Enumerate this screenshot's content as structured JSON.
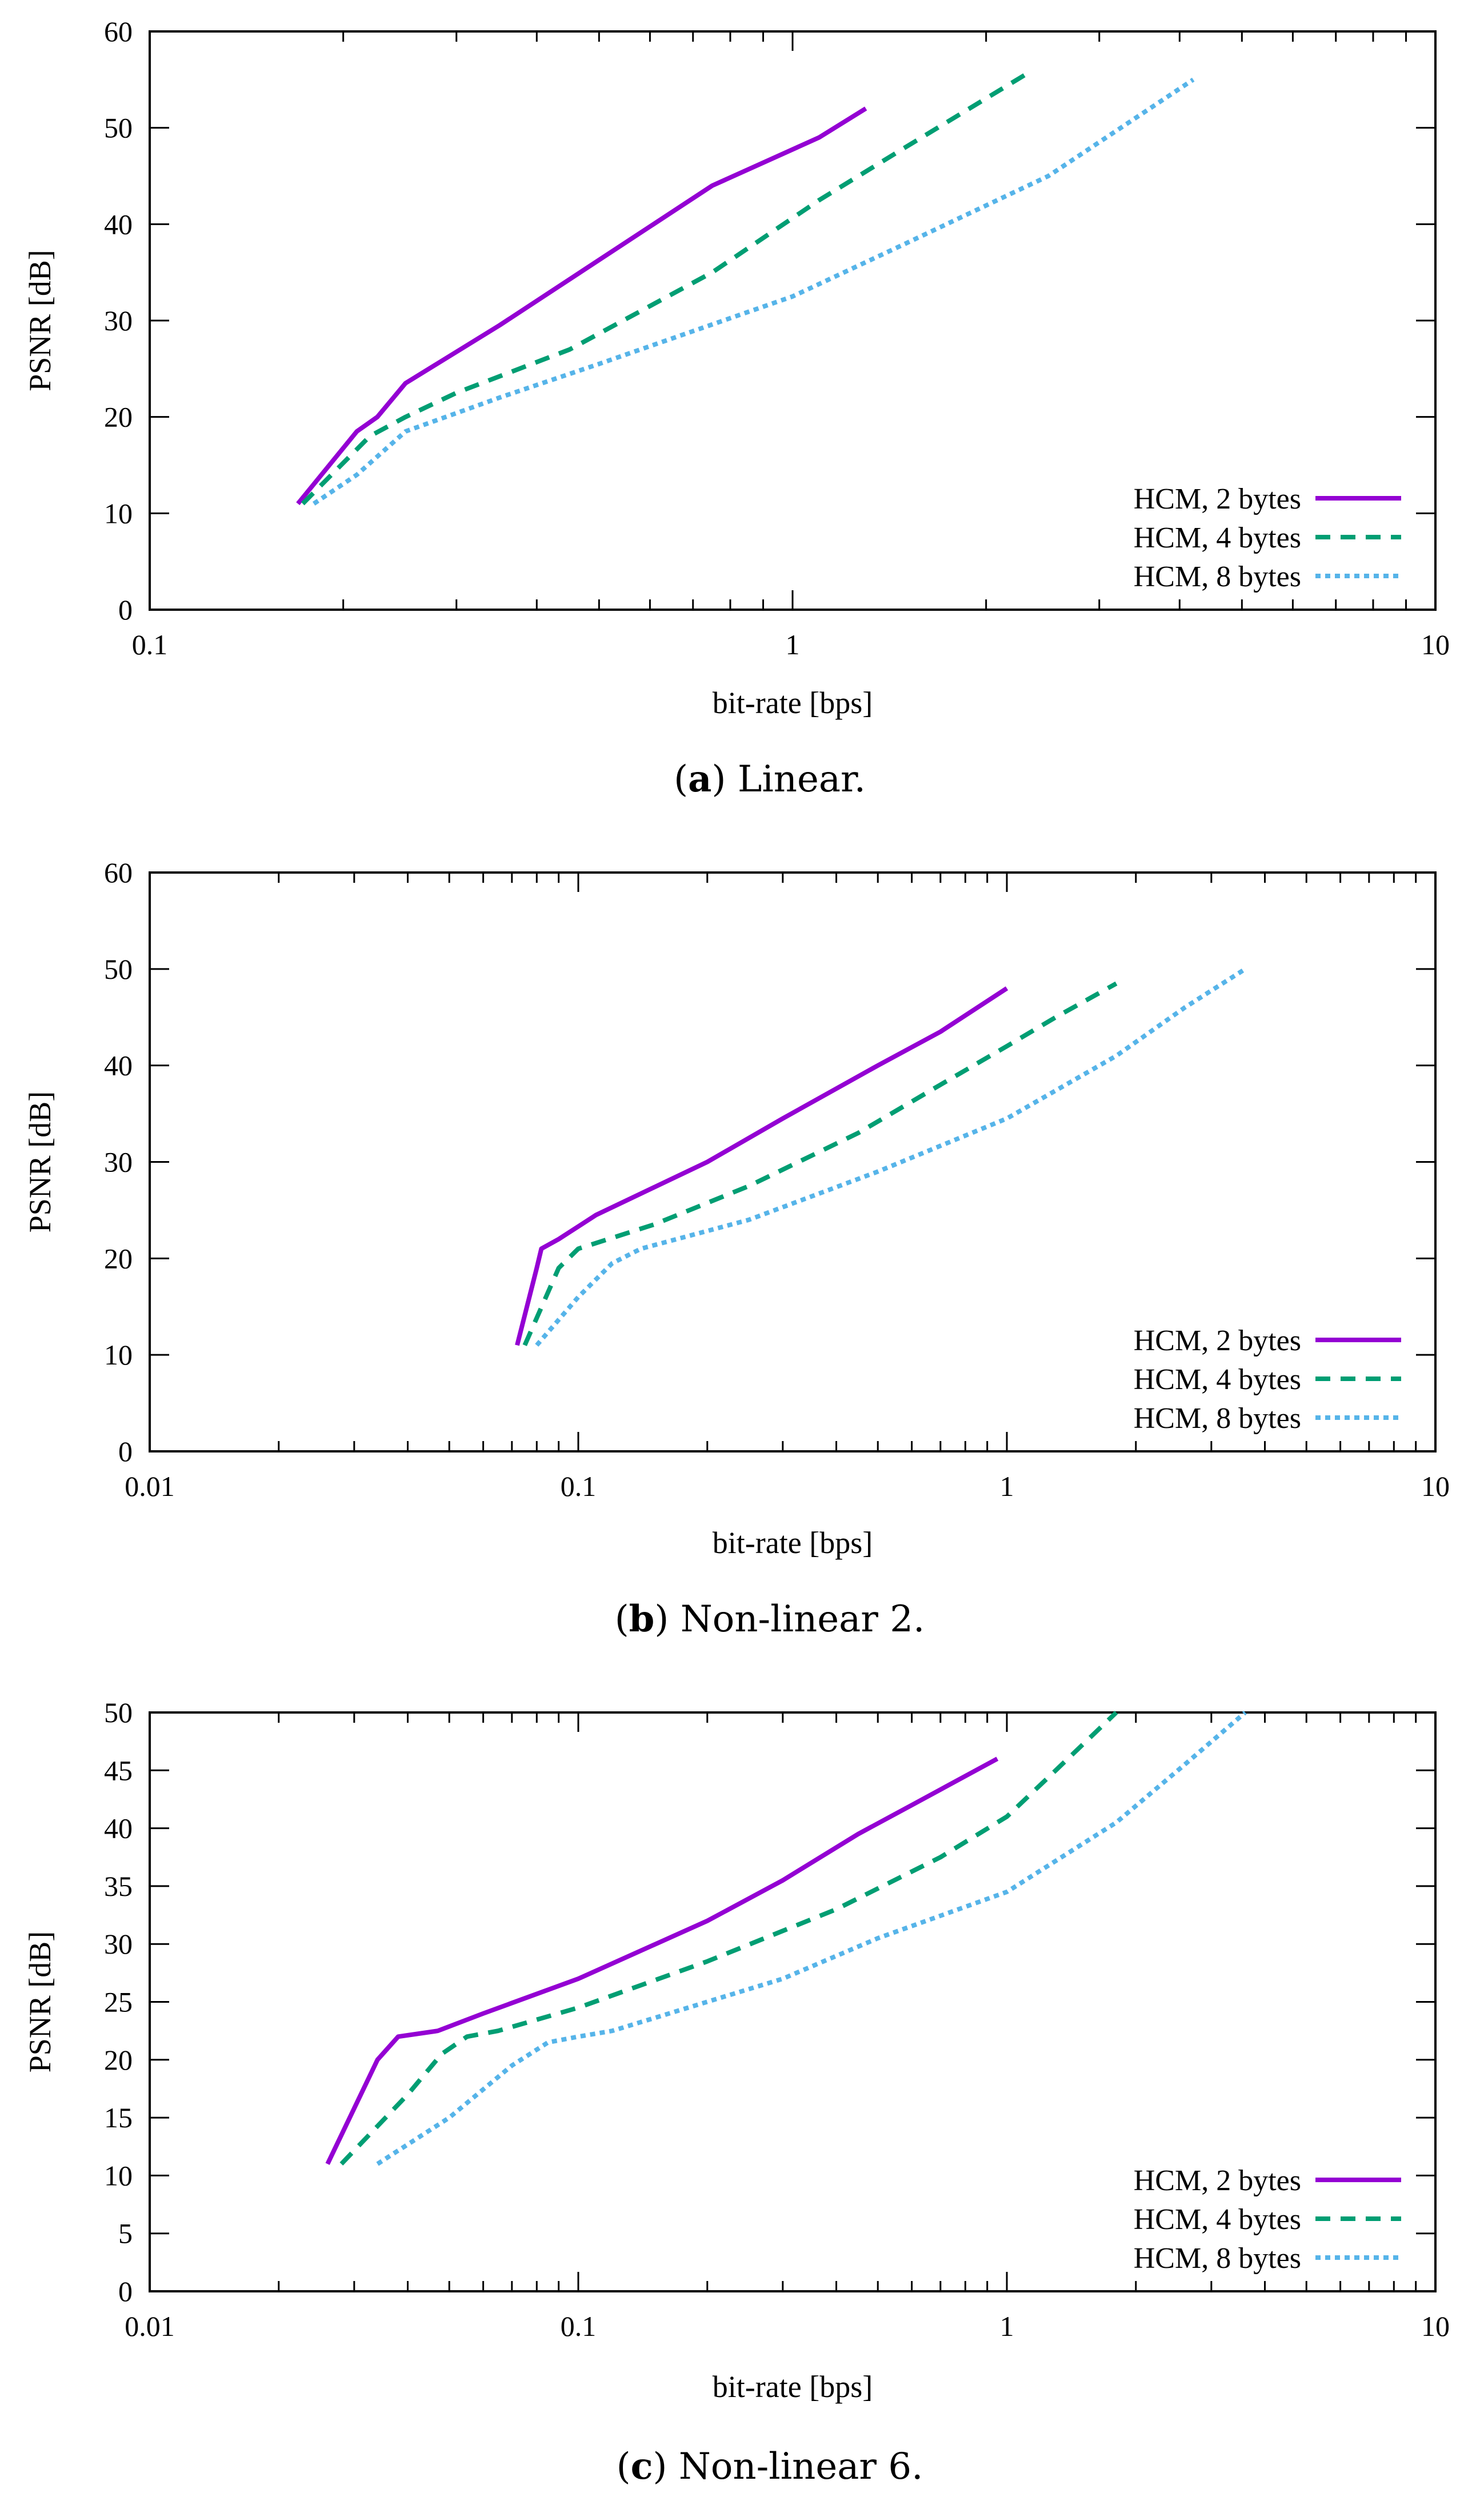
{
  "chart_data": [
    {
      "type": "line",
      "panel": "a",
      "caption_letter": "a",
      "caption_text": "Linear.",
      "xlabel": "bit-rate [bps]",
      "ylabel": "PSNR [dB]",
      "xscale": "log",
      "xlim": [
        0.1,
        10
      ],
      "ylim": [
        0,
        60
      ],
      "yticks": [
        0,
        10,
        20,
        30,
        40,
        50,
        60
      ],
      "xticks": [
        0.1,
        1,
        10
      ],
      "xtick_labels": [
        "0.1",
        "1",
        "10"
      ],
      "legend_position": "bottom-right",
      "series": [
        {
          "name": "HCM, 2 bytes",
          "color": "#9400d3",
          "style": "solid",
          "x": [
            0.17,
            0.21,
            0.226,
            0.25,
            0.35,
            0.75,
            1.1,
            1.3
          ],
          "y": [
            11,
            18.5,
            20,
            23.5,
            29.5,
            44,
            49,
            52
          ]
        },
        {
          "name": "HCM, 4 bytes",
          "color": "#009e73",
          "style": "dashed",
          "x": [
            0.173,
            0.22,
            0.25,
            0.3,
            0.45,
            0.75,
            1.1,
            1.5,
            2.3
          ],
          "y": [
            11,
            18,
            20,
            22.5,
            27,
            35,
            42.5,
            48,
            55.5
          ]
        },
        {
          "name": "HCM, 8 bytes",
          "color": "#56b4e9",
          "style": "dotted",
          "x": [
            0.18,
            0.21,
            0.25,
            0.35,
            0.5,
            1.0,
            1.5,
            2.5,
            4.2
          ],
          "y": [
            11,
            14,
            18.5,
            22,
            25.5,
            32.5,
            38,
            45,
            55
          ]
        }
      ]
    },
    {
      "type": "line",
      "panel": "b",
      "caption_letter": "b",
      "caption_text": "Non-linear 2.",
      "xlabel": "bit-rate [bps]",
      "ylabel": "PSNR [dB]",
      "xscale": "log",
      "xlim": [
        0.01,
        10
      ],
      "ylim": [
        0,
        60
      ],
      "yticks": [
        0,
        10,
        20,
        30,
        40,
        50,
        60
      ],
      "xticks": [
        0.01,
        0.1,
        1,
        10
      ],
      "xtick_labels": [
        "0.01",
        "0.1",
        "1",
        "10"
      ],
      "legend_position": "bottom-right",
      "series": [
        {
          "name": "HCM, 2 bytes",
          "color": "#9400d3",
          "style": "solid",
          "x": [
            0.072,
            0.08,
            0.082,
            0.09,
            0.11,
            0.2,
            0.3,
            0.5,
            0.7,
            1.0
          ],
          "y": [
            11,
            19,
            21,
            22,
            24.5,
            30,
            34.5,
            40,
            43.5,
            48
          ]
        },
        {
          "name": "HCM, 4 bytes",
          "color": "#009e73",
          "style": "dashed",
          "x": [
            0.075,
            0.09,
            0.1,
            0.15,
            0.25,
            0.45,
            0.7,
            1.0,
            1.3,
            1.8
          ],
          "y": [
            11,
            19,
            21,
            23.5,
            27.5,
            33,
            38,
            42,
            45,
            48.5
          ]
        },
        {
          "name": "HCM, 8 bytes",
          "color": "#56b4e9",
          "style": "dotted",
          "x": [
            0.08,
            0.1,
            0.12,
            0.14,
            0.25,
            0.5,
            1.0,
            1.8,
            2.6,
            3.6
          ],
          "y": [
            11,
            16,
            19.5,
            21,
            24,
            29,
            34.5,
            41,
            46,
            50
          ]
        }
      ]
    },
    {
      "type": "line",
      "panel": "c",
      "caption_letter": "c",
      "caption_text": "Non-linear 6.",
      "xlabel": "bit-rate [bps]",
      "ylabel": "PSNR [dB]",
      "xscale": "log",
      "xlim": [
        0.01,
        10
      ],
      "ylim": [
        0,
        50
      ],
      "yticks": [
        0,
        5,
        10,
        15,
        20,
        25,
        30,
        35,
        40,
        45,
        50
      ],
      "xticks": [
        0.01,
        0.1,
        1,
        10
      ],
      "xtick_labels": [
        "0.01",
        "0.1",
        "1",
        "10"
      ],
      "legend_position": "bottom-right",
      "series": [
        {
          "name": "HCM, 2 bytes",
          "color": "#9400d3",
          "style": "solid",
          "x": [
            0.026,
            0.034,
            0.038,
            0.047,
            0.06,
            0.1,
            0.2,
            0.3,
            0.45,
            0.6,
            0.95
          ],
          "y": [
            11,
            20,
            22,
            22.5,
            24,
            27,
            32,
            35.5,
            39.5,
            42,
            46
          ]
        },
        {
          "name": "HCM, 4 bytes",
          "color": "#009e73",
          "style": "dashed",
          "x": [
            0.028,
            0.04,
            0.048,
            0.055,
            0.065,
            0.1,
            0.2,
            0.4,
            0.7,
            1.0,
            1.3,
            1.8
          ],
          "y": [
            11,
            17,
            20.5,
            22,
            22.5,
            24.5,
            28.5,
            33,
            37.5,
            41,
            45,
            50
          ]
        },
        {
          "name": "HCM, 8 bytes",
          "color": "#56b4e9",
          "style": "dotted",
          "x": [
            0.034,
            0.05,
            0.07,
            0.085,
            0.1,
            0.12,
            0.3,
            0.5,
            1.0,
            1.8,
            2.6,
            3.6
          ],
          "y": [
            11,
            15,
            19.5,
            21.5,
            22,
            22.5,
            27,
            30.5,
            34.5,
            40.5,
            45.5,
            50
          ]
        }
      ]
    }
  ]
}
